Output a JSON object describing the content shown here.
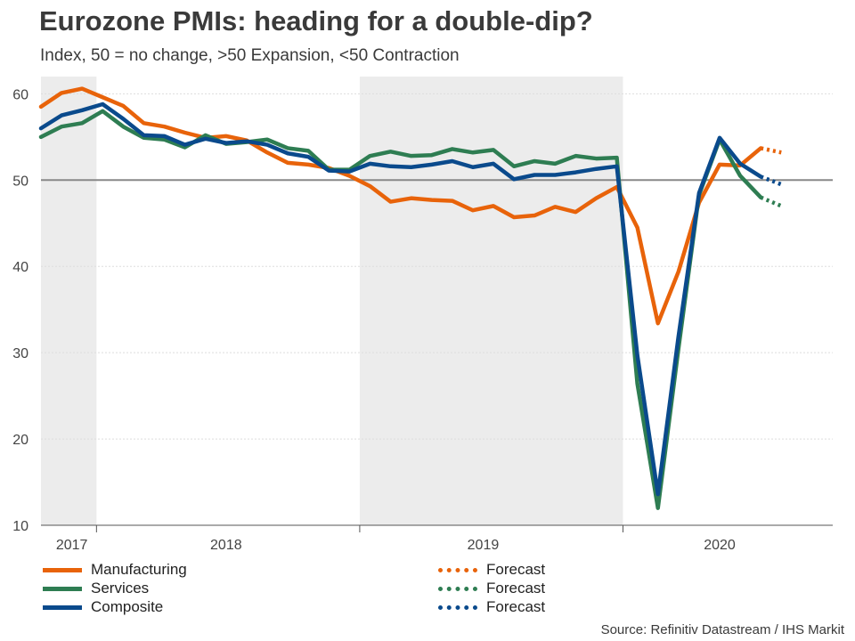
{
  "title": "Eurozone PMIs: heading for a double-dip?",
  "subtitle": "Index, 50 = no change, >50 Expansion, <50 Contraction",
  "source": "Source: Refinitiv Datastream / IHS Markit",
  "colors": {
    "manufacturing": "#e8630a",
    "services": "#2e7d52",
    "composite": "#0a4a8c",
    "shade": "#ececec",
    "reference": "#888888",
    "grid": "#dddddd"
  },
  "legend": [
    {
      "label": "Manufacturing",
      "color": "#e8630a",
      "style": "solid"
    },
    {
      "label": "Services",
      "color": "#2e7d52",
      "style": "solid"
    },
    {
      "label": "Composite",
      "color": "#0a4a8c",
      "style": "solid"
    },
    {
      "label": "Forecast",
      "color": "#e8630a",
      "style": "dotted"
    },
    {
      "label": "Forecast",
      "color": "#2e7d52",
      "style": "dotted"
    },
    {
      "label": "Forecast",
      "color": "#0a4a8c",
      "style": "dotted"
    }
  ],
  "chart_data": {
    "type": "line",
    "title": "Eurozone PMIs: heading for a double-dip?",
    "ylabel": "Index, 50 = no change, >50 Expansion, <50 Contraction",
    "ylim": [
      10,
      62
    ],
    "yticks": [
      10,
      20,
      30,
      40,
      50,
      60
    ],
    "reference_line": 50,
    "x_unit": "month index, 0 = Oct 2017",
    "xlim": [
      0,
      38.5
    ],
    "year_labels": [
      {
        "label": "2017",
        "x": 1.5
      },
      {
        "label": "2018",
        "x": 9
      },
      {
        "label": "2019",
        "x": 21.5
      },
      {
        "label": "2020",
        "x": 33
      }
    ],
    "year_separators": [
      2.7,
      15.5,
      28.3
    ],
    "shaded_ranges": [
      [
        0,
        2.7
      ],
      [
        15.5,
        28.3
      ]
    ],
    "series": [
      {
        "name": "Manufacturing",
        "values": [
          58.5,
          60.1,
          60.6,
          59.6,
          58.6,
          56.6,
          56.2,
          55.5,
          54.9,
          55.1,
          54.6,
          53.2,
          52.0,
          51.8,
          51.4,
          50.5,
          49.3,
          47.5,
          47.9,
          47.7,
          47.6,
          46.5,
          47.0,
          45.7,
          45.9,
          46.9,
          46.3,
          47.9,
          49.2,
          44.5,
          33.4,
          39.4,
          47.4,
          51.8,
          51.7,
          53.7
        ],
        "forecast": [
          53.7,
          53.2
        ]
      },
      {
        "name": "Services",
        "values": [
          55.0,
          56.2,
          56.6,
          58.0,
          56.2,
          54.9,
          54.7,
          53.8,
          55.2,
          54.2,
          54.4,
          54.7,
          53.7,
          53.4,
          51.2,
          51.2,
          52.8,
          53.3,
          52.8,
          52.9,
          53.6,
          53.2,
          53.5,
          51.6,
          52.2,
          51.9,
          52.8,
          52.5,
          52.6,
          26.4,
          12.0,
          30.5,
          48.3,
          54.7,
          50.5,
          48.0
        ],
        "forecast": [
          48.0,
          47.0
        ]
      },
      {
        "name": "Composite",
        "values": [
          56.0,
          57.5,
          58.1,
          58.8,
          57.1,
          55.2,
          55.1,
          54.1,
          54.8,
          54.3,
          54.5,
          54.1,
          53.1,
          52.7,
          51.1,
          51.0,
          51.9,
          51.6,
          51.5,
          51.8,
          52.2,
          51.5,
          51.9,
          50.1,
          50.6,
          50.6,
          50.9,
          51.3,
          51.6,
          29.7,
          13.6,
          31.9,
          48.5,
          54.9,
          51.9,
          50.4
        ],
        "forecast": [
          50.4,
          49.5
        ]
      }
    ]
  }
}
